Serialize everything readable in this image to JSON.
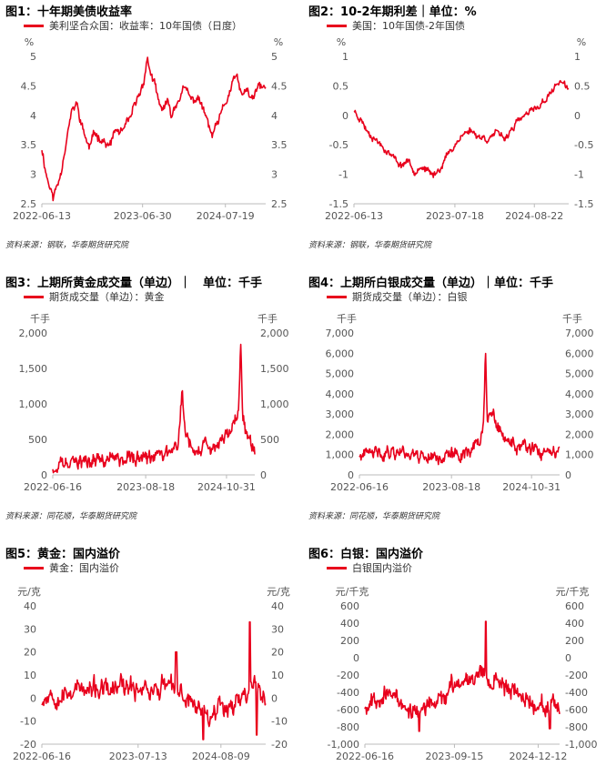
{
  "colors": {
    "series": "#e8001c",
    "axis": "#bbbbbb",
    "text": "#555555"
  },
  "sources": {
    "left_top": "资料来源：钢联，华泰期货研究院",
    "right_top": "资料来源：钢联，华泰期货研究院",
    "left_mid": "资料来源：同花顺，华泰期货研究院",
    "right_mid": "资料来源：同花顺，华泰期货研究院"
  },
  "chart_data": [
    {
      "id": "c1",
      "type": "line",
      "title": "图1：十年期美债收益率",
      "legend": "美利坚合众国：收益率：10年国债（日度）",
      "unit_left": "%",
      "unit_right": "%",
      "yticks": [
        2.5,
        3,
        3.5,
        4,
        4.5,
        5
      ],
      "ytick_labels": [
        "2.5",
        "3",
        "3.5",
        "4",
        "4.5",
        "5"
      ],
      "ylim": [
        2.5,
        5
      ],
      "xtick_labels": [
        "2022-06-13",
        "2023-06-30",
        "2024-07-19"
      ],
      "xtick_pos": [
        0.0,
        0.45,
        0.82
      ],
      "anchors": [
        [
          0,
          3.45
        ],
        [
          0.02,
          3.0
        ],
        [
          0.05,
          2.6
        ],
        [
          0.08,
          2.95
        ],
        [
          0.11,
          3.6
        ],
        [
          0.13,
          4.0
        ],
        [
          0.155,
          4.2
        ],
        [
          0.18,
          3.8
        ],
        [
          0.21,
          3.45
        ],
        [
          0.24,
          3.7
        ],
        [
          0.27,
          3.6
        ],
        [
          0.3,
          3.45
        ],
        [
          0.33,
          3.75
        ],
        [
          0.36,
          3.7
        ],
        [
          0.39,
          3.9
        ],
        [
          0.42,
          4.2
        ],
        [
          0.45,
          4.5
        ],
        [
          0.47,
          4.95
        ],
        [
          0.5,
          4.55
        ],
        [
          0.53,
          4.1
        ],
        [
          0.56,
          4.2
        ],
        [
          0.58,
          4.0
        ],
        [
          0.61,
          4.3
        ],
        [
          0.64,
          4.45
        ],
        [
          0.67,
          4.25
        ],
        [
          0.7,
          4.3
        ],
        [
          0.73,
          4.0
        ],
        [
          0.76,
          3.65
        ],
        [
          0.78,
          3.8
        ],
        [
          0.81,
          4.1
        ],
        [
          0.84,
          4.4
        ],
        [
          0.87,
          4.7
        ],
        [
          0.89,
          4.3
        ],
        [
          0.91,
          4.45
        ],
        [
          0.94,
          4.25
        ],
        [
          0.97,
          4.5
        ],
        [
          1.0,
          4.45
        ]
      ],
      "noise": 0.07,
      "seed": 11
    },
    {
      "id": "c2",
      "type": "line",
      "title": "图2：10-2年期利差｜单位：%",
      "legend": "美国：10年国债-2年国债",
      "unit_left": "%",
      "unit_right": "%",
      "yticks": [
        -1.5,
        -1,
        -0.5,
        0,
        0.5,
        1
      ],
      "ytick_labels": [
        "-1.5",
        "-1",
        "-0.5",
        "0",
        "0.5",
        "1"
      ],
      "ylim": [
        -1.5,
        1
      ],
      "xtick_labels": [
        "2022-06-13",
        "2023-07-18",
        "2024-08-22"
      ],
      "xtick_pos": [
        0.0,
        0.47,
        0.84
      ],
      "anchors": [
        [
          0,
          0.08
        ],
        [
          0.03,
          -0.05
        ],
        [
          0.06,
          -0.25
        ],
        [
          0.1,
          -0.4
        ],
        [
          0.14,
          -0.55
        ],
        [
          0.18,
          -0.7
        ],
        [
          0.22,
          -0.85
        ],
        [
          0.25,
          -0.75
        ],
        [
          0.28,
          -0.95
        ],
        [
          0.31,
          -0.85
        ],
        [
          0.34,
          -0.95
        ],
        [
          0.37,
          -1.02
        ],
        [
          0.4,
          -0.9
        ],
        [
          0.43,
          -0.7
        ],
        [
          0.46,
          -0.55
        ],
        [
          0.5,
          -0.35
        ],
        [
          0.54,
          -0.25
        ],
        [
          0.58,
          -0.35
        ],
        [
          0.62,
          -0.4
        ],
        [
          0.66,
          -0.3
        ],
        [
          0.7,
          -0.4
        ],
        [
          0.74,
          -0.2
        ],
        [
          0.78,
          -0.05
        ],
        [
          0.82,
          0.05
        ],
        [
          0.86,
          0.15
        ],
        [
          0.9,
          0.3
        ],
        [
          0.93,
          0.45
        ],
        [
          0.96,
          0.6
        ],
        [
          0.98,
          0.5
        ],
        [
          1.0,
          0.45
        ]
      ],
      "noise": 0.05,
      "seed": 23
    },
    {
      "id": "c3",
      "type": "line",
      "title": "图3：上期所黄金成交量（单边）｜　单位：千手",
      "legend": "期货成交量（单边）：黄金",
      "unit_left": "千手",
      "unit_right": "千手",
      "yticks": [
        0,
        500,
        1000,
        1500,
        2000
      ],
      "ytick_labels": [
        "0",
        "500",
        "1,000",
        "1,500",
        "2,000"
      ],
      "ylim": [
        0,
        2000
      ],
      "xtick_labels": [
        "2022-06-16",
        "2023-08-18",
        "2024-10-31"
      ],
      "xtick_pos": [
        0.0,
        0.46,
        0.86
      ],
      "anchors": [
        [
          0,
          100
        ],
        [
          0.1,
          150
        ],
        [
          0.2,
          200
        ],
        [
          0.3,
          240
        ],
        [
          0.4,
          250
        ],
        [
          0.5,
          220
        ],
        [
          0.55,
          260
        ],
        [
          0.6,
          350
        ],
        [
          0.62,
          450
        ],
        [
          0.64,
          1200
        ],
        [
          0.66,
          500
        ],
        [
          0.7,
          400
        ],
        [
          0.75,
          380
        ],
        [
          0.8,
          420
        ],
        [
          0.85,
          450
        ],
        [
          0.9,
          650
        ],
        [
          0.92,
          900
        ],
        [
          0.93,
          1850
        ],
        [
          0.94,
          800
        ],
        [
          0.96,
          500
        ],
        [
          1.0,
          400
        ]
      ],
      "noise": 90,
      "seed": 37,
      "floor": 30
    },
    {
      "id": "c4",
      "type": "line",
      "title": "图4：上期所白银成交量（单边）｜单位：千手",
      "legend": "期货成交量（单边）：白银",
      "unit_left": "千手",
      "unit_right": "千手",
      "yticks": [
        0,
        1000,
        2000,
        3000,
        4000,
        5000,
        6000,
        7000
      ],
      "ytick_labels": [
        "0",
        "1,000",
        "2,000",
        "3,000",
        "4,000",
        "5,000",
        "6,000",
        "7,000"
      ],
      "ylim": [
        0,
        7000
      ],
      "xtick_labels": [
        "2022-06-16",
        "2023-08-18",
        "2024-10-31"
      ],
      "xtick_pos": [
        0.0,
        0.46,
        0.86
      ],
      "anchors": [
        [
          0,
          900
        ],
        [
          0.1,
          1100
        ],
        [
          0.2,
          1200
        ],
        [
          0.3,
          1000
        ],
        [
          0.4,
          900
        ],
        [
          0.5,
          1000
        ],
        [
          0.6,
          1600
        ],
        [
          0.62,
          2500
        ],
        [
          0.63,
          6100
        ],
        [
          0.64,
          2600
        ],
        [
          0.67,
          3000
        ],
        [
          0.7,
          2000
        ],
        [
          0.75,
          1600
        ],
        [
          0.8,
          1400
        ],
        [
          0.85,
          1200
        ],
        [
          0.9,
          1100
        ],
        [
          0.95,
          1000
        ],
        [
          1.0,
          1000
        ]
      ],
      "noise": 300,
      "seed": 41,
      "floor": 400
    },
    {
      "id": "c5",
      "type": "line",
      "title": "图5：黄金：国内溢价",
      "legend": "黄金：国内溢价",
      "unit_left": "元/克",
      "unit_right": "元/克",
      "yticks": [
        -20,
        -10,
        0,
        10,
        20,
        30,
        40
      ],
      "ytick_labels": [
        "-20",
        "-10",
        "0",
        "10",
        "20",
        "30",
        "40"
      ],
      "ylim": [
        -20,
        40
      ],
      "xtick_labels": [
        "2022-06-16",
        "2023-07-13",
        "2024-08-09"
      ],
      "xtick_pos": [
        0.0,
        0.43,
        0.8
      ],
      "anchors": [
        [
          0,
          0
        ],
        [
          0.05,
          3
        ],
        [
          0.1,
          1
        ],
        [
          0.15,
          5
        ],
        [
          0.2,
          2
        ],
        [
          0.25,
          4
        ],
        [
          0.3,
          2
        ],
        [
          0.35,
          5
        ],
        [
          0.4,
          3
        ],
        [
          0.45,
          6
        ],
        [
          0.5,
          3
        ],
        [
          0.55,
          6
        ],
        [
          0.6,
          2
        ],
        [
          0.65,
          0
        ],
        [
          0.7,
          -4
        ],
        [
          0.75,
          -6
        ],
        [
          0.8,
          -3
        ],
        [
          0.85,
          -2
        ],
        [
          0.9,
          0
        ],
        [
          0.93,
          4
        ],
        [
          0.95,
          10
        ],
        [
          0.97,
          3
        ],
        [
          1.0,
          -2
        ]
      ],
      "noise": 4,
      "seed": 53,
      "spikes": [
        [
          0.6,
          20
        ],
        [
          0.72,
          -18
        ],
        [
          0.93,
          33
        ],
        [
          0.96,
          -16
        ]
      ]
    },
    {
      "id": "c6",
      "type": "line",
      "title": "图6：白银：国内溢价",
      "legend": "白银国内溢价",
      "unit_left": "元/千克",
      "unit_right": "元/千克",
      "yticks": [
        -1000,
        -800,
        -600,
        -400,
        -200,
        0,
        200,
        400,
        600
      ],
      "ytick_labels": [
        "-1,000",
        "-800",
        "-600",
        "-400",
        "-200",
        "0",
        "200",
        "400",
        "600"
      ],
      "ylim": [
        -1000,
        600
      ],
      "xtick_labels": [
        "2022-06-16",
        "2023-09-15",
        "2024-12-12"
      ],
      "xtick_pos": [
        0.0,
        0.46,
        0.89
      ],
      "anchors": [
        [
          0,
          -550
        ],
        [
          0.08,
          -420
        ],
        [
          0.15,
          -450
        ],
        [
          0.22,
          -600
        ],
        [
          0.3,
          -620
        ],
        [
          0.38,
          -500
        ],
        [
          0.45,
          -350
        ],
        [
          0.5,
          -250
        ],
        [
          0.55,
          -200
        ],
        [
          0.6,
          -150
        ],
        [
          0.65,
          -250
        ],
        [
          0.7,
          -300
        ],
        [
          0.75,
          -350
        ],
        [
          0.8,
          -450
        ],
        [
          0.85,
          -500
        ],
        [
          0.9,
          -550
        ],
        [
          0.95,
          -580
        ],
        [
          1.0,
          -620
        ]
      ],
      "noise": 90,
      "seed": 67,
      "spikes": [
        [
          0.62,
          420
        ],
        [
          0.28,
          -850
        ],
        [
          0.95,
          -820
        ]
      ]
    }
  ]
}
